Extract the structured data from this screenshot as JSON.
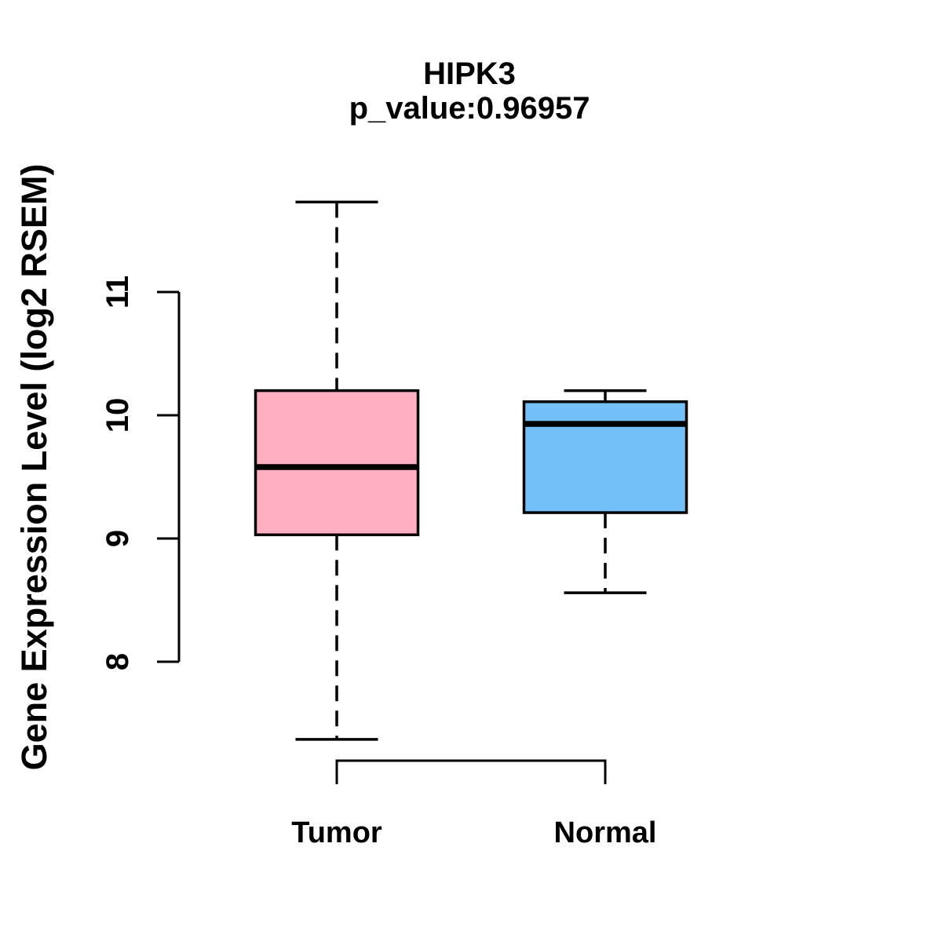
{
  "chart_data": {
    "type": "boxplot",
    "title": "HIPK3",
    "subtitle": "p_value:0.96957",
    "ylabel": "Gene Expression Level (log2 RSEM)",
    "xlabel": "",
    "yticks": [
      8,
      9,
      10,
      11
    ],
    "ylim": [
      7.2,
      11.9
    ],
    "grid": false,
    "line_color": "#000000",
    "background_color": "#FFFFFF",
    "groups": [
      {
        "label": "Tumor",
        "color": "#FFAFC0",
        "whisker_low": 7.37,
        "q1": 9.03,
        "median": 9.58,
        "q3": 10.2,
        "whisker_high": 11.73
      },
      {
        "label": "Normal",
        "color": "#74BFF8",
        "whisker_low": 8.56,
        "q1": 9.21,
        "median": 9.93,
        "q3": 10.11,
        "whisker_high": 10.2
      }
    ]
  }
}
